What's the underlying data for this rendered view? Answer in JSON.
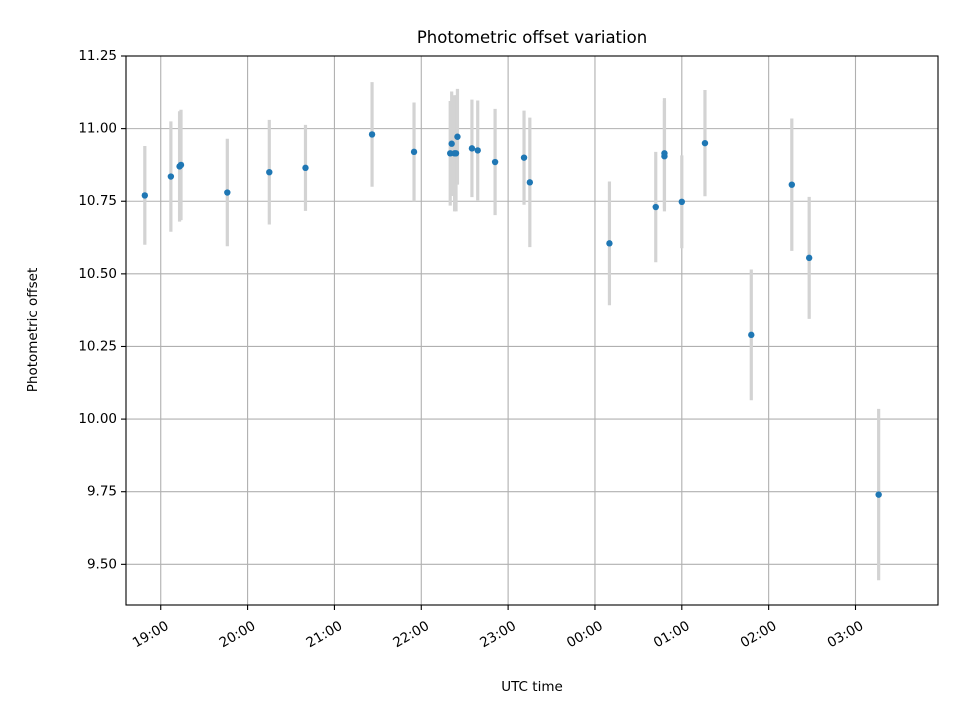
{
  "chart_data": {
    "type": "scatter",
    "title": "Photometric offset variation",
    "xlabel": "UTC time",
    "ylabel": "Photometric offset",
    "ylim": [
      9.36,
      11.25
    ],
    "xlim": [
      "18:36",
      "27:57"
    ],
    "grid": true,
    "x_ticks": [
      {
        "label": "19:00",
        "time": "19:00"
      },
      {
        "label": "20:00",
        "time": "20:00"
      },
      {
        "label": "21:00",
        "time": "21:00"
      },
      {
        "label": "22:00",
        "time": "22:00"
      },
      {
        "label": "23:00",
        "time": "23:00"
      },
      {
        "label": "00:00",
        "time": "24:00"
      },
      {
        "label": "01:00",
        "time": "25:00"
      },
      {
        "label": "02:00",
        "time": "26:00"
      },
      {
        "label": "03:00",
        "time": "27:00"
      }
    ],
    "y_ticks": [
      {
        "label": "9.50",
        "value": 9.5
      },
      {
        "label": "9.75",
        "value": 9.75
      },
      {
        "label": "10.00",
        "value": 10.0
      },
      {
        "label": "10.25",
        "value": 10.25
      },
      {
        "label": "10.50",
        "value": 10.5
      },
      {
        "label": "10.75",
        "value": 10.75
      },
      {
        "label": "11.00",
        "value": 11.0
      },
      {
        "label": "11.25",
        "value": 11.25
      }
    ],
    "colors": {
      "points": "#1f77b4",
      "error_bars": "#d3d3d3",
      "grid": "#b0b0b0"
    },
    "points": [
      {
        "time": "18:49",
        "y": 10.77,
        "err": 0.17
      },
      {
        "time": "19:07",
        "y": 10.835,
        "err": 0.19
      },
      {
        "time": "19:13",
        "y": 10.87,
        "err": 0.19
      },
      {
        "time": "19:14",
        "y": 10.875,
        "err": 0.19
      },
      {
        "time": "19:46",
        "y": 10.78,
        "err": 0.185
      },
      {
        "time": "20:15",
        "y": 10.85,
        "err": 0.18
      },
      {
        "time": "20:40",
        "y": 10.865,
        "err": 0.148
      },
      {
        "time": "21:26",
        "y": 10.98,
        "err": 0.18
      },
      {
        "time": "21:55",
        "y": 10.92,
        "err": 0.17
      },
      {
        "time": "22:20",
        "y": 10.915,
        "err": 0.18
      },
      {
        "time": "22:21",
        "y": 10.948,
        "err": 0.18
      },
      {
        "time": "22:23",
        "y": 10.915,
        "err": 0.2
      },
      {
        "time": "22:24",
        "y": 10.915,
        "err": 0.2
      },
      {
        "time": "22:25",
        "y": 10.972,
        "err": 0.165
      },
      {
        "time": "22:35",
        "y": 10.932,
        "err": 0.168
      },
      {
        "time": "22:39",
        "y": 10.925,
        "err": 0.172
      },
      {
        "time": "22:51",
        "y": 10.885,
        "err": 0.183
      },
      {
        "time": "23:11",
        "y": 10.9,
        "err": 0.162
      },
      {
        "time": "23:15",
        "y": 10.815,
        "err": 0.223
      },
      {
        "time": "24:10",
        "y": 10.605,
        "err": 0.213
      },
      {
        "time": "24:42",
        "y": 10.73,
        "err": 0.19
      },
      {
        "time": "24:48",
        "y": 10.905,
        "err": 0.19
      },
      {
        "time": "24:48",
        "y": 10.915,
        "err": 0.19
      },
      {
        "time": "25:00",
        "y": 10.748,
        "err": 0.16
      },
      {
        "time": "25:16",
        "y": 10.95,
        "err": 0.183
      },
      {
        "time": "25:48",
        "y": 10.29,
        "err": 0.225
      },
      {
        "time": "26:16",
        "y": 10.807,
        "err": 0.228
      },
      {
        "time": "26:28",
        "y": 10.555,
        "err": 0.21
      },
      {
        "time": "27:16",
        "y": 9.74,
        "err": 0.295
      }
    ]
  }
}
